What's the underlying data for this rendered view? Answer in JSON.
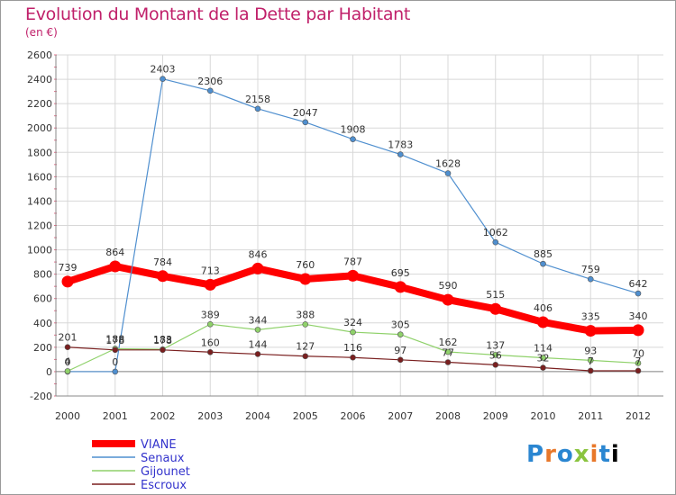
{
  "title": "Evolution du Montant de la Dette par Habitant",
  "unit_label": "(en €)",
  "logo_text": "Proxiti",
  "chart_data": {
    "type": "line",
    "x": [
      "2000",
      "2001",
      "2002",
      "2003",
      "2004",
      "2005",
      "2006",
      "2007",
      "2008",
      "2009",
      "2010",
      "2011",
      "2012"
    ],
    "ylim": [
      -200,
      2600
    ],
    "yticks": [
      -200,
      0,
      200,
      400,
      600,
      800,
      1000,
      1200,
      1400,
      1600,
      1800,
      2000,
      2200,
      2400,
      2600
    ],
    "grid": true,
    "legend_placement": "bottom-left",
    "series": [
      {
        "name": "VIANE",
        "color": "#ff0000",
        "values": [
          739,
          864,
          784,
          713,
          846,
          760,
          787,
          695,
          590,
          515,
          406,
          335,
          340
        ],
        "labels": [
          "739",
          "864",
          "784",
          "713",
          "846",
          "760",
          "787",
          "695",
          "590",
          "515",
          "406",
          "335",
          "340"
        ]
      },
      {
        "name": "Senaux",
        "color": "#4f8fcf",
        "values": [
          0,
          0,
          2403,
          2306,
          2158,
          2047,
          1908,
          1783,
          1628,
          1062,
          885,
          759,
          642
        ],
        "labels": [
          "0",
          "0",
          "2403",
          "2306",
          "2158",
          "2047",
          "1908",
          "1783",
          "1628",
          "1062",
          "885",
          "759",
          "642"
        ]
      },
      {
        "name": "Gijounet",
        "color": "#8fd16a",
        "values": [
          4,
          188,
          183,
          389,
          344,
          388,
          324,
          305,
          162,
          137,
          114,
          93,
          70
        ],
        "labels": [
          "4",
          "188",
          "183",
          "389",
          "344",
          "388",
          "324",
          "305",
          "162",
          "137",
          "114",
          "93",
          "70"
        ]
      },
      {
        "name": "Escroux",
        "color": "#7a1f1f",
        "values": [
          201,
          178,
          178,
          160,
          144,
          127,
          116,
          97,
          77,
          56,
          32,
          7,
          7
        ],
        "labels": [
          "201",
          "178",
          "178",
          "160",
          "144",
          "127",
          "116",
          "97",
          "77",
          "56",
          "32",
          "7",
          "7"
        ]
      }
    ]
  }
}
